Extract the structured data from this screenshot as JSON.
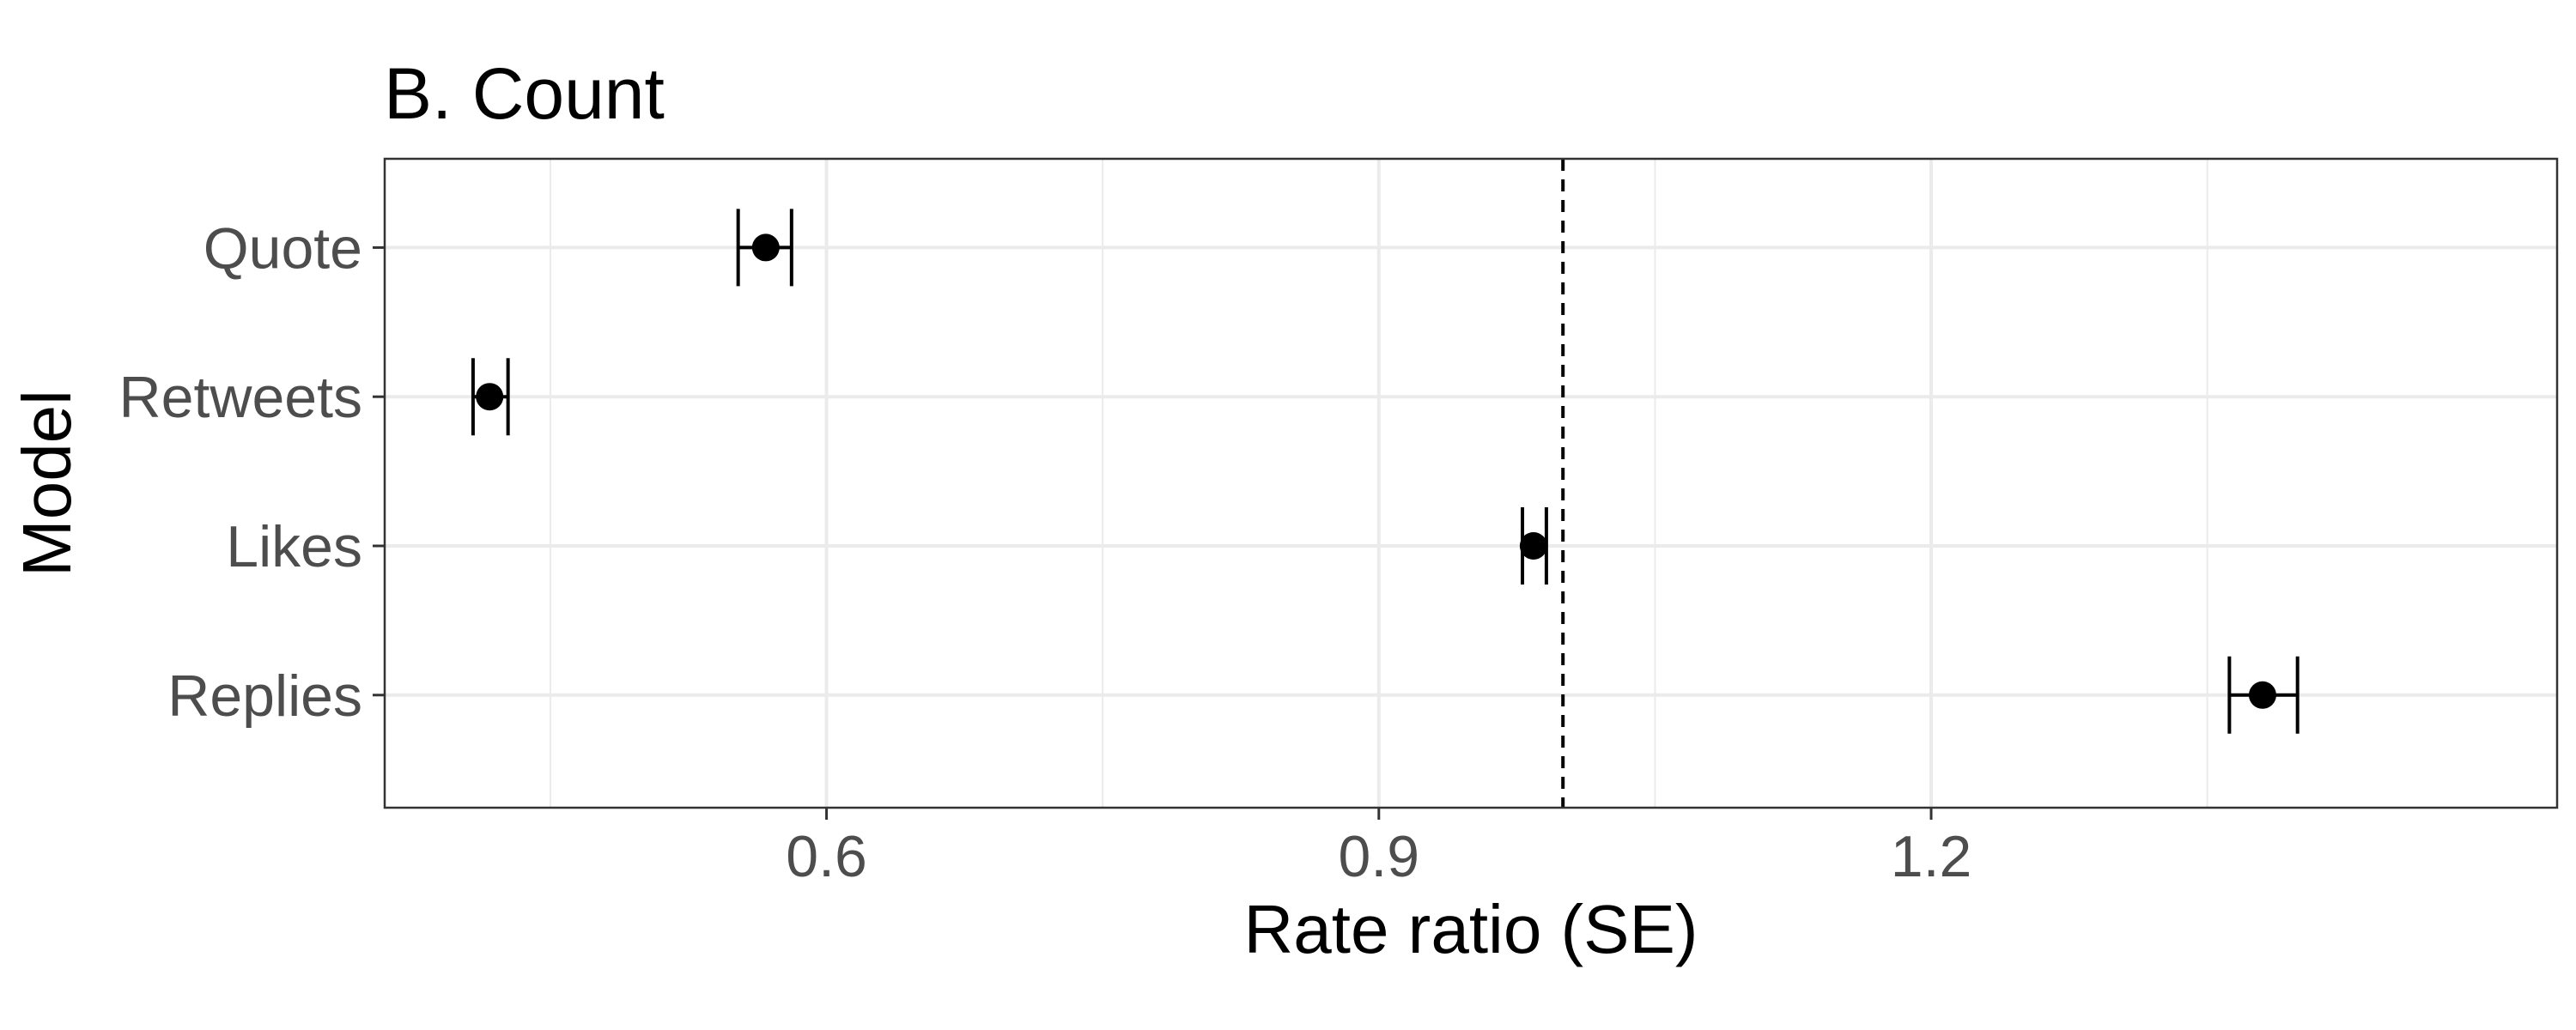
{
  "chart_data": {
    "type": "dot-errorbar",
    "title": "B. Count",
    "xlabel": "Rate ratio (SE)",
    "ylabel": "Model",
    "xlim": [
      0.36,
      1.54
    ],
    "x_ticks": [
      0.6,
      0.9,
      1.2
    ],
    "x_tick_labels": [
      "0.6",
      "0.9",
      "1.2"
    ],
    "x_minor_ticks": [
      0.45,
      0.75,
      1.05,
      1.35
    ],
    "reference_line": 1.0,
    "grid": true,
    "categories": [
      "Quote",
      "Retweets",
      "Likes",
      "Replies"
    ],
    "points": [
      {
        "label": "Quote",
        "estimate": 0.567,
        "lower": 0.552,
        "upper": 0.581
      },
      {
        "label": "Retweets",
        "estimate": 0.417,
        "lower": 0.408,
        "upper": 0.427
      },
      {
        "label": "Likes",
        "estimate": 0.984,
        "lower": 0.978,
        "upper": 0.991
      },
      {
        "label": "Replies",
        "estimate": 1.38,
        "lower": 1.362,
        "upper": 1.399
      }
    ],
    "colors": {
      "point": "#000000",
      "grid": "#ebebeb",
      "panel_border": "#333333",
      "tick_text": "#4d4d4d"
    }
  }
}
